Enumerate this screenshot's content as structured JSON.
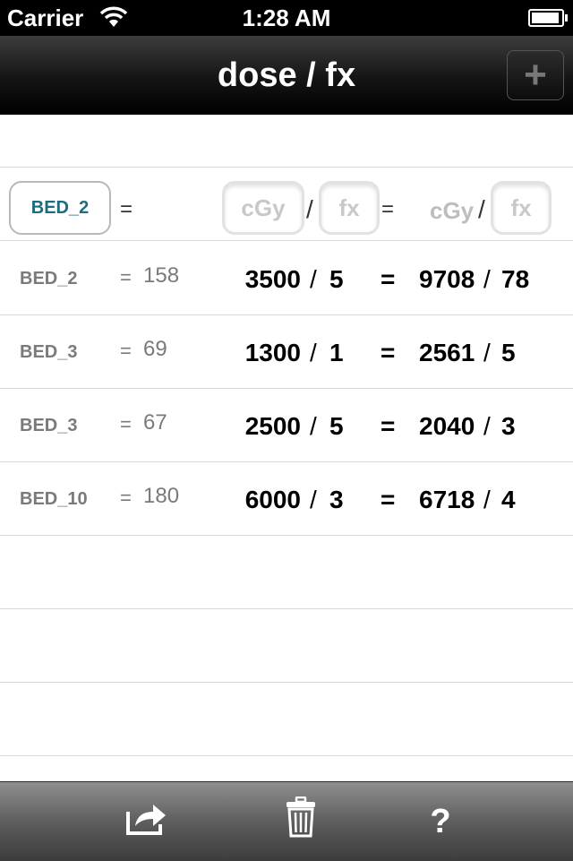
{
  "status": {
    "carrier": "Carrier",
    "time": "1:28 AM"
  },
  "navbar": {
    "title": "dose / fx",
    "add_label": "+"
  },
  "input": {
    "bed_label": "BED_2",
    "eq": "=",
    "cgy_placeholder": "cGy",
    "slash": "/",
    "fx_placeholder": "fx",
    "eq2": "=",
    "cgy2_label": "cGy",
    "slash2": "/",
    "fx2_placeholder": "fx"
  },
  "rows": [
    {
      "bed": "BED_2",
      "eq": "=",
      "value": "158",
      "dose": "3500",
      "slash": "/",
      "fx": "5",
      "eq2": "=",
      "dose2": "9708",
      "slash2": "/",
      "fx2": "78"
    },
    {
      "bed": "BED_3",
      "eq": "=",
      "value": "69",
      "dose": "1300",
      "slash": "/",
      "fx": "1",
      "eq2": "=",
      "dose2": "2561",
      "slash2": "/",
      "fx2": "5"
    },
    {
      "bed": "BED_3",
      "eq": "=",
      "value": "67",
      "dose": "2500",
      "slash": "/",
      "fx": "5",
      "eq2": "=",
      "dose2": "2040",
      "slash2": "/",
      "fx2": "3"
    },
    {
      "bed": "BED_10",
      "eq": "=",
      "value": "180",
      "dose": "6000",
      "slash": "/",
      "fx": "3",
      "eq2": "=",
      "dose2": "6718",
      "slash2": "/",
      "fx2": "4"
    }
  ],
  "toolbar": {
    "help_label": "?"
  }
}
